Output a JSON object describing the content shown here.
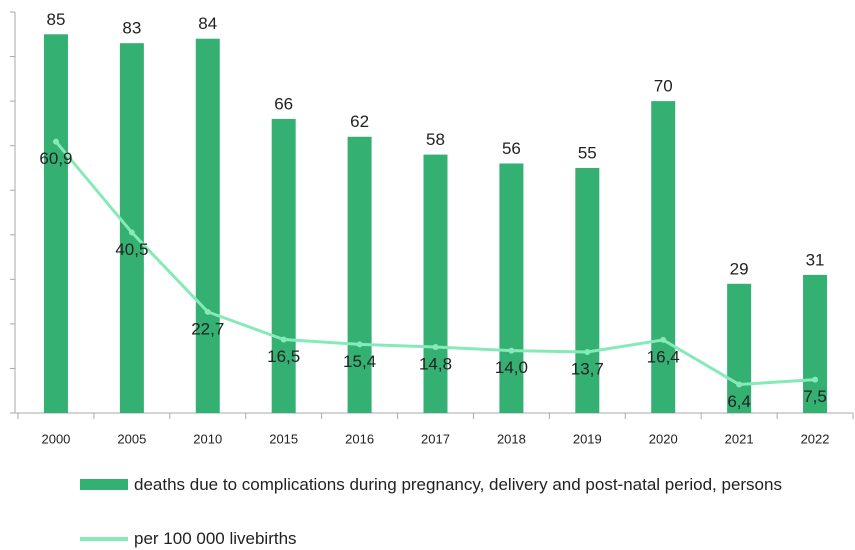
{
  "chart_data": {
    "type": "bar",
    "categories": [
      "2000",
      "2005",
      "2010",
      "2015",
      "2016",
      "2017",
      "2018",
      "2019",
      "2020",
      "2021",
      "2022"
    ],
    "series": [
      {
        "name": "deaths due to complications during pregnancy, delivery and post-natal period, persons",
        "type": "bar",
        "color": "#33b072",
        "values": [
          85,
          83,
          84,
          66,
          62,
          58,
          56,
          55,
          70,
          29,
          31
        ]
      },
      {
        "name": "per 100 000 livebirths",
        "type": "line",
        "color": "#86eab8",
        "values": [
          60.9,
          40.5,
          22.7,
          16.5,
          15.4,
          14.8,
          14.0,
          13.7,
          16.4,
          6.4,
          7.5
        ],
        "value_labels": [
          "60,9",
          "40,5",
          "22,7",
          "16,5",
          "15,4",
          "14,8",
          "14,0",
          "13,7",
          "16,4",
          "6,4",
          "7,5"
        ]
      }
    ],
    "ylim": [
      0,
      90
    ],
    "yticks": [
      0,
      10,
      20,
      30,
      40,
      50,
      60,
      70,
      80,
      90
    ]
  }
}
